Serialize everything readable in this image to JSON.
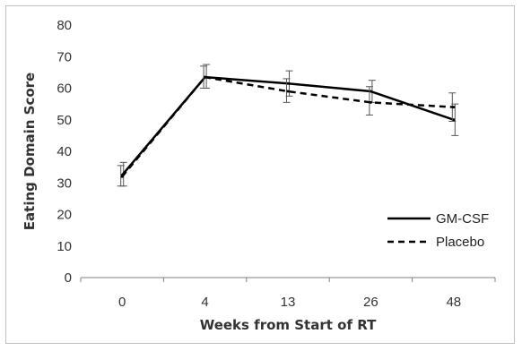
{
  "chart_data": {
    "type": "line",
    "title": "",
    "xlabel": "Weeks from Start of RT",
    "ylabel": "Eating Domain Score",
    "categories": [
      "0",
      "4",
      "13",
      "26",
      "48"
    ],
    "ylim": [
      0,
      80
    ],
    "yticks": [
      0,
      10,
      20,
      30,
      40,
      50,
      60,
      70,
      80
    ],
    "grid": false,
    "legend_position": "bottom-right",
    "series": [
      {
        "name": "GM-CSF",
        "style": "solid",
        "color": "#000000",
        "values": [
          32.5,
          63.5,
          61.5,
          59,
          50
        ],
        "error_low": [
          29,
          60,
          57.5,
          55.5,
          45
        ],
        "error_high": [
          36.5,
          67.5,
          65.5,
          62.5,
          55
        ]
      },
      {
        "name": "Placebo",
        "style": "dashed",
        "color": "#000000",
        "values": [
          32,
          63.5,
          59,
          55.5,
          54
        ],
        "error_low": [
          29,
          60,
          55.5,
          51.5,
          49.5
        ],
        "error_high": [
          35.5,
          67,
          63,
          60.5,
          58.5
        ]
      }
    ]
  }
}
